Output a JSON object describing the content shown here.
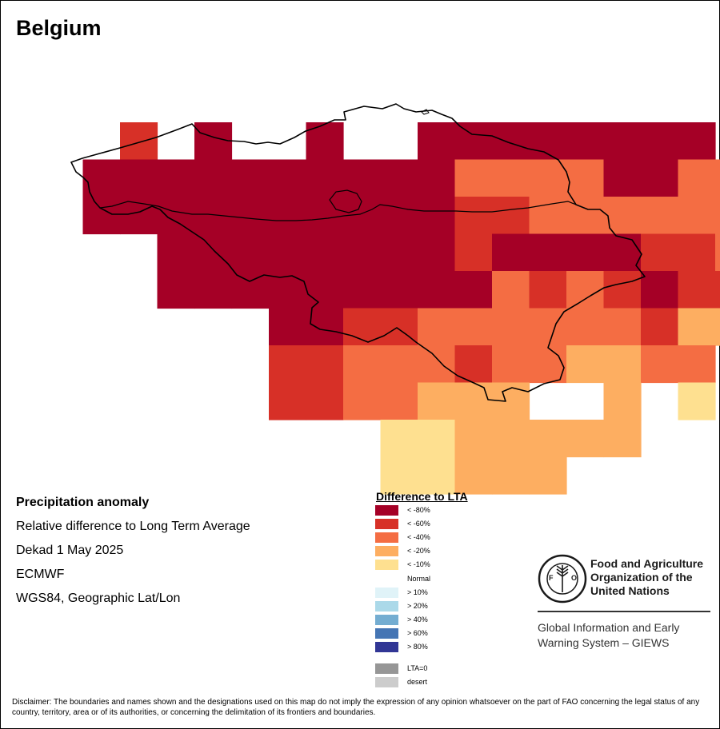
{
  "title": "Belgium",
  "info": {
    "line1": "Precipitation anomaly",
    "line2": "Relative difference to Long Term Average",
    "line3": "Dekad 1 May 2025",
    "line4": "ECMWF",
    "line5": "WGS84, Geographic Lat/Lon"
  },
  "legend": {
    "title": "Difference to LTA",
    "items": [
      {
        "label": "< -80%",
        "color": "#a50026"
      },
      {
        "label": "< -60%",
        "color": "#d73027"
      },
      {
        "label": "< -40%",
        "color": "#f46d43"
      },
      {
        "label": "< -20%",
        "color": "#fdae61"
      },
      {
        "label": "< -10%",
        "color": "#fee090"
      },
      {
        "label": "Normal",
        "color": "#ffffff"
      },
      {
        "label": "> 10%",
        "color": "#e0f3f8"
      },
      {
        "label": "> 20%",
        "color": "#abd9e9"
      },
      {
        "label": "> 40%",
        "color": "#74add1"
      },
      {
        "label": "> 60%",
        "color": "#4575b4"
      },
      {
        "label": "> 80%",
        "color": "#313695"
      },
      {
        "label": "LTA=0",
        "color": "#969696"
      },
      {
        "label": "desert",
        "color": "#cccccc"
      }
    ]
  },
  "grid": {
    "colors": {
      "1": "#a50026",
      "2": "#d73027",
      "3": "#f46d43",
      "4": "#fdae61",
      "5": "#fee090"
    },
    "rows": [
      "..2.1..1..11111111..",
      ".1111111111333311333",
      ".1111111111223333333",
      "...1111111121111223.",
      "...11111111132321223",
      "......112233333324455",
      "......223332334433",
      "......2233444..4.5",
      ".........5544444",
      ".........55444"
    ]
  },
  "fao": {
    "name_line1": "Food and Agriculture",
    "name_line2": "Organization of the",
    "name_line3": "United Nations",
    "logo_text": "FAO",
    "motto": "FIAT PANIS",
    "giews_line1": "Global Information and Early",
    "giews_line2": "Warning System – GIEWS"
  },
  "disclaimer": "Disclaimer: The boundaries and names shown and the designations used on this map do not imply the expression of any opinion whatsoever on the part of FAO concerning the legal status of any country, territory, area or of its authorities, or concerning the delimitation of its frontiers and boundaries."
}
